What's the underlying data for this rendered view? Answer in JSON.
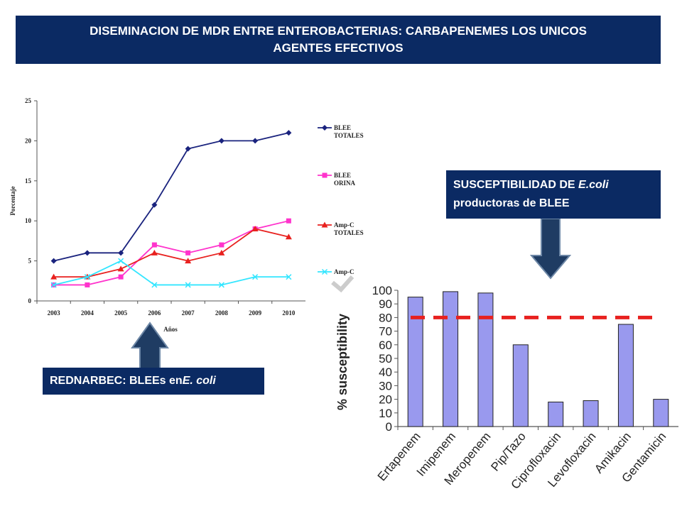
{
  "title": {
    "line1": "DISEMINACION DE MDR ENTRE ENTEROBACTERIAS: CARBAPENEMES LOS UNICOS",
    "line2": "AGENTES EFECTIVOS"
  },
  "box_left": {
    "text": "REDNARBEC: BLEEs en ",
    "italic": "E. coli"
  },
  "box_right": {
    "line1_text": "SUSCEPTIBILIDAD DE ",
    "line1_italic": "E.coli",
    "line2": "productoras de BLEE"
  },
  "colors": {
    "navy": "#0b2a63",
    "arrow": "#1f3c63",
    "blee_totales": "#1a237e",
    "blee_orina": "#ff33cc",
    "ampc_totales": "#e8211f",
    "ampc": "#33e6ff",
    "bars": "#9999ee",
    "threshold": "#e8211f"
  },
  "chart_data": [
    {
      "type": "line",
      "x": [
        "2003",
        "2004",
        "2005",
        "2006",
        "2007",
        "2008",
        "2009",
        "2010"
      ],
      "ylabel": "Porcentaje",
      "xlabel": "Años",
      "ylim": [
        0,
        25
      ],
      "yticks": [
        0,
        5,
        10,
        15,
        20,
        25
      ],
      "legend_position": "right",
      "series": [
        {
          "name_lines": [
            "BLEE",
            "TOTALES"
          ],
          "values": [
            5,
            6,
            6,
            12,
            19,
            20,
            20,
            21
          ]
        },
        {
          "name_lines": [
            "BLEE",
            "ORINA"
          ],
          "values": [
            2,
            2,
            3,
            7,
            6,
            7,
            9,
            10
          ]
        },
        {
          "name_lines": [
            "Amp-C",
            "TOTALES"
          ],
          "values": [
            3,
            3,
            4,
            6,
            5,
            6,
            9,
            8
          ]
        },
        {
          "name_lines": [
            "Amp-C"
          ],
          "values": [
            2,
            3,
            5,
            2,
            2,
            2,
            3,
            3
          ]
        }
      ]
    },
    {
      "type": "bar",
      "categories": [
        "Ertapenem",
        "Imipenem",
        "Meropenem",
        "Pip/Tazo",
        "Ciprofloxacin",
        "Levofloxacin",
        "Amikacin",
        "Gentamicin"
      ],
      "values": [
        95,
        99,
        98,
        60,
        18,
        19,
        75,
        20
      ],
      "ylabel": "% susceptibility",
      "ylim": [
        0,
        100
      ],
      "yticks": [
        0,
        10,
        20,
        30,
        40,
        50,
        60,
        70,
        80,
        90,
        100
      ],
      "threshold": 80
    }
  ]
}
